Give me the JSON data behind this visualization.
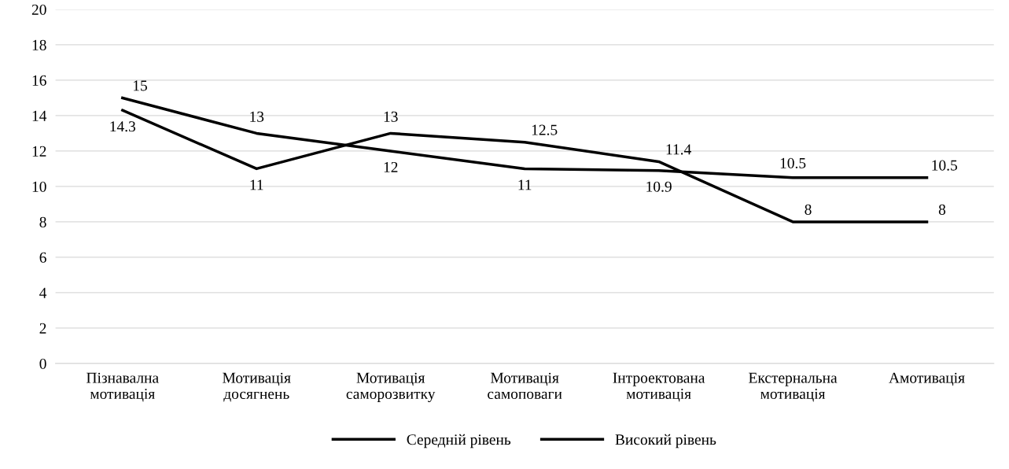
{
  "chart_data": {
    "type": "line",
    "categories": [
      "Пізнавална\nмотивація",
      "Мотивація\nдосягнень",
      "Мотивація\nсаморозвитку",
      "Мотивація\nсамоповаги",
      "Інтроектована\nмотивація",
      "Екстернальна\nмотивація",
      "Амотивація"
    ],
    "series": [
      {
        "name": "Середній рівень",
        "color": "#000000",
        "values": [
          15,
          13,
          12,
          11,
          10.9,
          10.5,
          10.5
        ]
      },
      {
        "name": "Високий рівень",
        "color": "#000000",
        "values": [
          14.3,
          11,
          13,
          12.5,
          11.4,
          8,
          8
        ]
      }
    ],
    "ylim": [
      0,
      20
    ],
    "yticks": [
      0,
      2,
      4,
      6,
      8,
      10,
      12,
      14,
      16,
      18,
      20
    ],
    "grid": "y",
    "legend": "bottom",
    "data_labels": true,
    "marker": "none",
    "line_style": "solid"
  }
}
